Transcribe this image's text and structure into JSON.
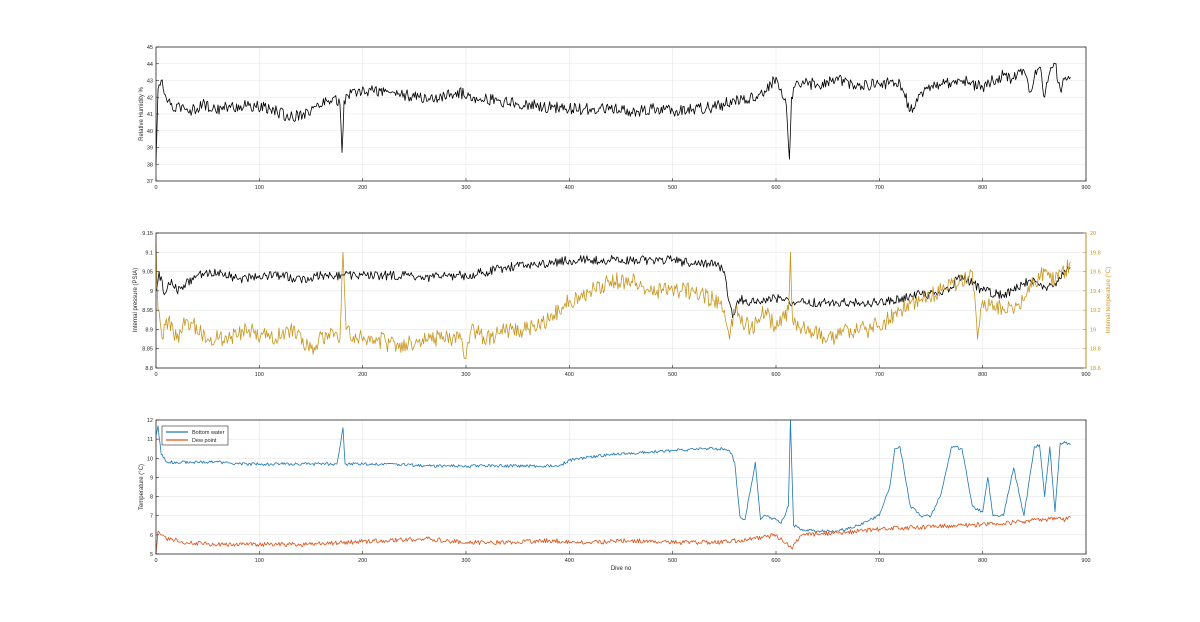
{
  "colors": {
    "black": "#000000",
    "humidity": "#000000",
    "pressure": "#000000",
    "internal_temp": "#C8961E",
    "bottom_water": "#1F77B4",
    "dew_point": "#D95319",
    "grid": "#e6e6e6",
    "axis": "#262626"
  },
  "chart_data": [
    {
      "type": "line",
      "title": "",
      "xlabel": "",
      "ylabel": "Relative Humidity %",
      "xlim": [
        0,
        900
      ],
      "ylim": [
        37,
        45
      ],
      "xticks": [
        0,
        100,
        200,
        300,
        400,
        500,
        600,
        700,
        800,
        900
      ],
      "yticks": [
        37,
        38,
        39,
        40,
        41,
        42,
        43,
        44,
        45
      ],
      "grid": true,
      "series": [
        {
          "name": "",
          "color": "#000000",
          "x": [
            0,
            2,
            5,
            8,
            12,
            18,
            25,
            35,
            45,
            55,
            70,
            90,
            110,
            130,
            150,
            165,
            172,
            178,
            180,
            182,
            186,
            195,
            210,
            230,
            250,
            270,
            290,
            310,
            330,
            350,
            370,
            380,
            400,
            420,
            440,
            460,
            480,
            500,
            520,
            540,
            560,
            575,
            590,
            600,
            605,
            610,
            613,
            615,
            618,
            625,
            640,
            660,
            680,
            700,
            720,
            730,
            740,
            760,
            780,
            800,
            810,
            820,
            830,
            840,
            845,
            850,
            855,
            860,
            865,
            870,
            875,
            880,
            885
          ],
          "y": [
            38.0,
            42.5,
            43.0,
            42.2,
            41.8,
            41.2,
            41.5,
            41.2,
            41.6,
            41.3,
            41.4,
            41.5,
            41.3,
            40.8,
            41.2,
            41.8,
            42.0,
            41.6,
            38.7,
            41.8,
            42.1,
            42.3,
            42.4,
            42.3,
            42.0,
            41.9,
            42.3,
            42.0,
            41.8,
            41.6,
            41.5,
            41.4,
            41.3,
            41.3,
            41.3,
            41.1,
            41.3,
            41.2,
            41.3,
            41.4,
            41.8,
            42.0,
            42.3,
            43.2,
            42.5,
            41.5,
            38.3,
            42.0,
            42.6,
            42.8,
            42.8,
            43.0,
            42.7,
            42.8,
            42.9,
            41.2,
            42.3,
            42.8,
            43.0,
            42.6,
            43.0,
            43.3,
            43.1,
            43.6,
            42.3,
            43.2,
            43.8,
            42.0,
            43.5,
            44.0,
            42.5,
            43.2,
            43.2
          ]
        }
      ]
    },
    {
      "type": "line",
      "title": "",
      "xlabel": "",
      "ylabel": "Internal pressure (PSIA)",
      "ylabel_right": "Internal temperature (°C)",
      "xlim": [
        0,
        900
      ],
      "ylim": [
        8.8,
        9.15
      ],
      "ylim_right": [
        18.6,
        20
      ],
      "xticks": [
        0,
        100,
        200,
        300,
        400,
        500,
        600,
        700,
        800,
        900
      ],
      "yticks": [
        8.8,
        8.85,
        8.9,
        8.95,
        9,
        9.05,
        9.1,
        9.15
      ],
      "yticks_right": [
        18.6,
        18.8,
        19,
        19.2,
        19.4,
        19.6,
        19.8,
        20
      ],
      "grid": true,
      "series": [
        {
          "name": "",
          "axis": "left",
          "color": "#000000",
          "x": [
            0,
            3,
            8,
            15,
            20,
            40,
            60,
            80,
            100,
            120,
            140,
            160,
            180,
            200,
            220,
            240,
            260,
            280,
            300,
            320,
            340,
            360,
            380,
            400,
            420,
            440,
            460,
            480,
            500,
            520,
            540,
            550,
            555,
            558,
            565,
            575,
            600,
            620,
            650,
            680,
            700,
            720,
            740,
            760,
            780,
            800,
            820,
            840,
            850,
            860,
            870,
            880,
            885
          ],
          "y": [
            9.0,
            9.05,
            8.99,
            9.03,
            9.0,
            9.04,
            9.05,
            9.03,
            9.04,
            9.04,
            9.03,
            9.04,
            9.04,
            9.04,
            9.04,
            9.04,
            9.03,
            9.04,
            9.04,
            9.05,
            9.06,
            9.07,
            9.07,
            9.08,
            9.08,
            9.08,
            9.08,
            9.08,
            9.08,
            9.07,
            9.07,
            9.05,
            8.97,
            8.93,
            8.98,
            8.97,
            8.98,
            8.97,
            8.97,
            8.97,
            8.97,
            8.98,
            8.99,
            8.99,
            9.04,
            9.0,
            8.99,
            9.02,
            9.03,
            9.01,
            9.02,
            9.05,
            9.06
          ]
        },
        {
          "name": "",
          "axis": "right",
          "color": "#C8961E",
          "x": [
            0,
            2,
            6,
            12,
            20,
            30,
            50,
            70,
            90,
            110,
            130,
            150,
            170,
            178,
            181,
            184,
            195,
            215,
            235,
            255,
            275,
            295,
            300,
            305,
            320,
            340,
            360,
            380,
            390,
            400,
            420,
            440,
            460,
            480,
            500,
            520,
            540,
            550,
            555,
            560,
            575,
            590,
            600,
            612,
            614,
            616,
            630,
            650,
            670,
            690,
            710,
            720,
            740,
            760,
            780,
            790,
            795,
            800,
            820,
            840,
            850,
            860,
            870,
            875,
            880,
            885
          ],
          "y": [
            19.9,
            19.2,
            18.9,
            19.1,
            18.9,
            19.1,
            18.9,
            18.9,
            19.0,
            18.9,
            19.0,
            18.8,
            19.0,
            18.9,
            19.8,
            19.0,
            18.9,
            18.9,
            18.8,
            18.9,
            18.9,
            18.9,
            18.7,
            19.0,
            18.9,
            19.0,
            19.0,
            19.1,
            19.2,
            19.3,
            19.4,
            19.5,
            19.5,
            19.4,
            19.4,
            19.4,
            19.3,
            19.2,
            18.9,
            19.2,
            19.0,
            19.2,
            19.0,
            19.2,
            19.8,
            19.1,
            19.0,
            18.9,
            19.0,
            19.0,
            19.1,
            19.2,
            19.3,
            19.4,
            19.5,
            19.6,
            18.9,
            19.3,
            19.2,
            19.3,
            19.5,
            19.6,
            19.5,
            19.6,
            19.6,
            19.7
          ]
        }
      ]
    },
    {
      "type": "line",
      "title": "",
      "xlabel": "Dive no",
      "ylabel": "Temperature (°C)",
      "xlim": [
        0,
        900
      ],
      "ylim": [
        5,
        12
      ],
      "xticks": [
        0,
        100,
        200,
        300,
        400,
        500,
        600,
        700,
        800,
        900
      ],
      "yticks": [
        5,
        6,
        7,
        8,
        9,
        10,
        11,
        12
      ],
      "grid": true,
      "legend": "top-left",
      "series": [
        {
          "name": "Bottom water",
          "color": "#1F77B4",
          "x": [
            0,
            2,
            5,
            10,
            20,
            40,
            60,
            80,
            100,
            120,
            150,
            175,
            181,
            183,
            186,
            200,
            230,
            260,
            280,
            300,
            330,
            360,
            390,
            400,
            410,
            440,
            470,
            500,
            530,
            550,
            555,
            560,
            565,
            570,
            580,
            585,
            590,
            595,
            600,
            605,
            612,
            614,
            617,
            625,
            640,
            660,
            680,
            700,
            710,
            715,
            720,
            730,
            740,
            750,
            760,
            770,
            780,
            790,
            800,
            805,
            810,
            820,
            830,
            840,
            850,
            855,
            860,
            865,
            870,
            875,
            880,
            885
          ],
          "y": [
            11.2,
            11.7,
            10.2,
            9.8,
            9.8,
            9.8,
            9.8,
            9.7,
            9.7,
            9.7,
            9.7,
            9.7,
            11.6,
            9.7,
            9.7,
            9.7,
            9.7,
            9.6,
            9.6,
            9.6,
            9.6,
            9.6,
            9.6,
            9.9,
            10.0,
            10.2,
            10.3,
            10.4,
            10.5,
            10.5,
            10.4,
            9.8,
            7.0,
            6.8,
            9.8,
            6.8,
            7.0,
            6.9,
            6.8,
            6.6,
            7.5,
            12.0,
            6.5,
            6.3,
            6.2,
            6.2,
            6.5,
            7.0,
            8.5,
            10.5,
            10.6,
            7.5,
            7.0,
            7.0,
            8.2,
            10.6,
            10.5,
            7.5,
            7.2,
            9.0,
            7.0,
            7.0,
            9.5,
            7.0,
            10.6,
            10.7,
            8.0,
            10.6,
            7.2,
            10.8,
            10.8,
            10.7
          ]
        },
        {
          "name": "Dew point",
          "color": "#D95319",
          "x": [
            0,
            2,
            5,
            10,
            30,
            60,
            100,
            140,
            180,
            220,
            260,
            300,
            340,
            380,
            420,
            460,
            500,
            540,
            580,
            600,
            615,
            625,
            660,
            700,
            740,
            780,
            820,
            840,
            860,
            880,
            885
          ],
          "y": [
            5.0,
            6.2,
            6.0,
            5.8,
            5.6,
            5.5,
            5.5,
            5.5,
            5.6,
            5.7,
            5.8,
            5.6,
            5.6,
            5.7,
            5.6,
            5.7,
            5.6,
            5.6,
            5.8,
            6.0,
            5.3,
            6.0,
            6.1,
            6.3,
            6.4,
            6.5,
            6.6,
            6.7,
            6.8,
            6.8,
            6.9
          ]
        }
      ]
    }
  ]
}
